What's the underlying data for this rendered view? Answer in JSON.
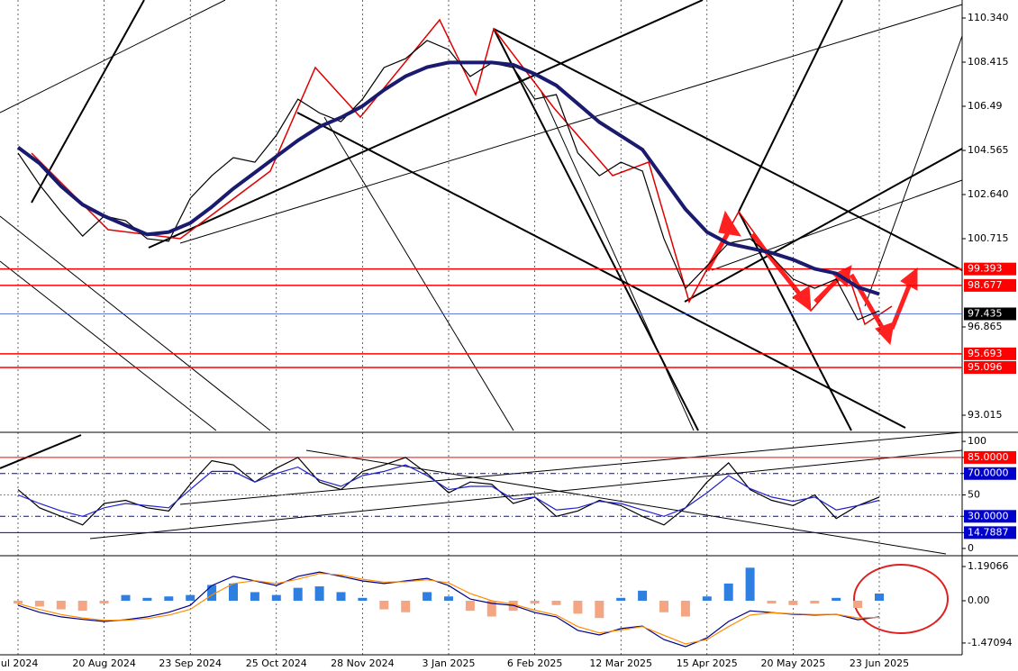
{
  "chart_data": [
    {
      "type": "line",
      "categories": [
        "Jul 2024",
        null,
        null,
        null,
        "20 Aug 2024",
        null,
        null,
        null,
        "23 Sep 2024",
        null,
        null,
        null,
        "25 Oct 2024",
        null,
        null,
        null,
        "28 Nov 2024",
        null,
        null,
        null,
        "3 Jan 2025",
        null,
        null,
        null,
        "6 Feb 2025",
        null,
        null,
        null,
        "12 Mar 2025",
        null,
        null,
        null,
        "15 Apr 2025",
        null,
        null,
        null,
        "20 May 2025",
        null,
        null,
        null,
        "23 Jun 2025"
      ],
      "series": [
        {
          "color": "#000000",
          "values": [
            104.45,
            103.07,
            101.89,
            100.83,
            101.7,
            101.5,
            100.71,
            100.6,
            102.48,
            103.46,
            104.25,
            104.05,
            105.23,
            106.8,
            106.2,
            105.82,
            106.8,
            108.18,
            108.57,
            109.36,
            108.96,
            107.79,
            108.38,
            108.18,
            106.8,
            107.0,
            104.45,
            103.46,
            104.05,
            103.66,
            100.71,
            98.55,
            99.53,
            100.52,
            100.71,
            99.93,
            98.95,
            98.55,
            98.95,
            97.18,
            97.57
          ]
        },
        {
          "color": "#1a1a6e",
          "values": [
            104.7,
            104.0,
            103.0,
            102.2,
            101.7,
            101.3,
            100.9,
            101.0,
            101.4,
            102.1,
            102.9,
            103.6,
            104.3,
            105.0,
            105.6,
            106.0,
            106.5,
            107.2,
            107.8,
            108.2,
            108.4,
            108.4,
            108.4,
            108.3,
            107.9,
            107.4,
            106.6,
            105.8,
            105.2,
            104.6,
            103.3,
            102.0,
            101.0,
            100.5,
            100.3,
            100.1,
            99.8,
            99.4,
            99.2,
            98.6,
            98.3
          ]
        }
      ],
      "ylim": [
        92.347,
        111.126
      ],
      "yticks": [
        {
          "value": 110.34,
          "label": "110.340"
        },
        108.415,
        106.49,
        104.565,
        {
          "value": 102.64,
          "label": "102.640"
        },
        100.715,
        96.865,
        93.015
      ],
      "levels": [
        {
          "value": 99.393,
          "color": "#ff0000"
        },
        {
          "value": 98.677,
          "color": "#ff0000"
        },
        {
          "value": 97.435,
          "color": "#000000"
        },
        {
          "value": 95.693,
          "color": "#ff0000"
        },
        {
          "value": 95.096,
          "color": "#ff0000"
        }
      ],
      "grid": true
    },
    {
      "type": "line",
      "series": [
        {
          "color": "#000000",
          "values": [
            55,
            38,
            30,
            22,
            42,
            45,
            38,
            35,
            60,
            82,
            78,
            62,
            75,
            85,
            62,
            55,
            72,
            78,
            85,
            70,
            52,
            62,
            60,
            42,
            48,
            30,
            35,
            45,
            40,
            30,
            22,
            38,
            62,
            80,
            55,
            45,
            40,
            50,
            28,
            40,
            48
          ]
        },
        {
          "color": "#2222cc",
          "values": [
            50,
            42,
            35,
            30,
            38,
            42,
            40,
            38,
            55,
            72,
            72,
            62,
            70,
            76,
            64,
            58,
            68,
            72,
            78,
            68,
            55,
            58,
            58,
            46,
            48,
            36,
            38,
            44,
            42,
            36,
            30,
            38,
            52,
            68,
            56,
            48,
            44,
            48,
            36,
            40,
            45
          ]
        }
      ],
      "ylim": [
        -5.1,
        106.8
      ],
      "yticks": [
        100,
        {
          "value": 85,
          "label": "85.0000",
          "color": "#ff0000"
        },
        {
          "value": 70,
          "label": "70.0000",
          "color": "#0000cc"
        },
        50,
        {
          "value": 30,
          "label": "30.0000",
          "color": "#0000cc"
        },
        {
          "value": 14.7887,
          "label": "14.7887",
          "color": "#0000cc"
        },
        0
      ]
    },
    {
      "type": "macd",
      "histogram": [
        -0.1,
        -0.2,
        -0.3,
        -0.35,
        -0.1,
        0.2,
        0.1,
        0.15,
        0.2,
        0.55,
        0.6,
        0.3,
        0.2,
        0.45,
        0.5,
        0.3,
        0.1,
        -0.3,
        -0.4,
        0.3,
        0.15,
        -0.35,
        -0.55,
        -0.35,
        -0.1,
        -0.15,
        -0.45,
        -0.6,
        0.1,
        0.35,
        -0.4,
        -0.55,
        0.15,
        0.6,
        1.15,
        -0.1,
        -0.15,
        -0.1,
        0.1,
        -0.25,
        0.25
      ],
      "positive_color": "#2f7fe0",
      "negative_color": "#f4a582",
      "series": [
        {
          "color": "#00008b",
          "values": [
            -0.16,
            -0.4,
            -0.56,
            -0.65,
            -0.72,
            -0.66,
            -0.56,
            -0.4,
            -0.16,
            0.53,
            0.85,
            0.69,
            0.53,
            0.85,
            1.0,
            0.85,
            0.69,
            0.6,
            0.69,
            0.78,
            0.53,
            0.06,
            -0.09,
            -0.16,
            -0.41,
            -0.56,
            -1.03,
            -1.19,
            -0.97,
            -0.88,
            -1.35,
            -1.6,
            -1.29,
            -0.72,
            -0.35,
            -0.41,
            -0.47,
            -0.5,
            -0.47,
            -0.66,
            -0.56
          ]
        },
        {
          "color": "#ff8c00",
          "values": [
            -0.1,
            -0.3,
            -0.48,
            -0.6,
            -0.68,
            -0.68,
            -0.62,
            -0.5,
            -0.3,
            0.2,
            0.6,
            0.7,
            0.6,
            0.75,
            0.95,
            0.9,
            0.75,
            0.65,
            0.66,
            0.73,
            0.62,
            0.25,
            0.0,
            -0.12,
            -0.33,
            -0.5,
            -0.9,
            -1.12,
            -1.02,
            -0.9,
            -1.2,
            -1.5,
            -1.35,
            -0.9,
            -0.5,
            -0.42,
            -0.45,
            -0.48,
            -0.47,
            -0.6,
            -0.58
          ]
        }
      ],
      "ylim": [
        -1.818,
        1.473
      ],
      "yticks": [
        1.19066,
        {
          "value": 0,
          "label": "0.00"
        },
        -1.47094
      ]
    }
  ]
}
